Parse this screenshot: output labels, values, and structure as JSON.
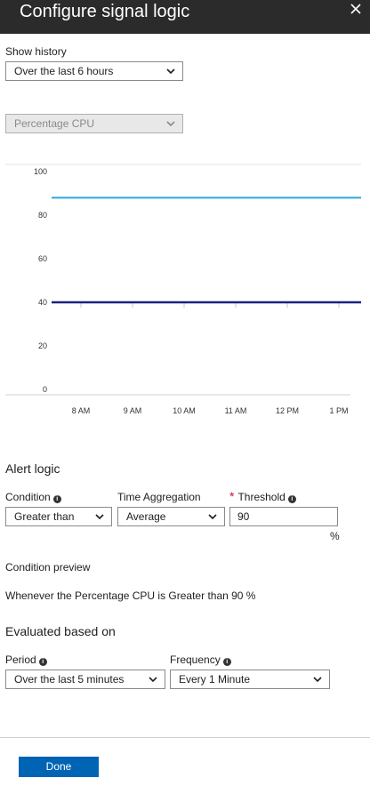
{
  "header": {
    "title": "Configure signal logic"
  },
  "history": {
    "label": "Show history",
    "value": "Over the last 6 hours"
  },
  "metric": {
    "value": "Percentage CPU"
  },
  "chart_data": {
    "type": "line",
    "y_ticks": [
      "100",
      "80",
      "60",
      "40",
      "20",
      "0"
    ],
    "ylim": [
      0,
      100
    ],
    "x_ticks": [
      "8 AM",
      "9 AM",
      "10 AM",
      "11 AM",
      "12 PM",
      "1 PM"
    ],
    "series": [
      {
        "values": [
          88,
          88
        ],
        "color": "#29a8e0"
      },
      {
        "values": [
          40,
          40
        ],
        "color": "#1a237e"
      }
    ],
    "grid": false
  },
  "alert": {
    "title": "Alert logic",
    "condition_label": "Condition",
    "condition_value": "Greater than",
    "aggregation_label": "Time Aggregation",
    "aggregation_value": "Average",
    "required_mark": "*",
    "threshold_label": "Threshold",
    "threshold_value": "90",
    "threshold_unit": "%"
  },
  "preview": {
    "label": "Condition preview",
    "text": "Whenever the Percentage CPU is Greater than 90 %"
  },
  "evaluated": {
    "title": "Evaluated based on",
    "period_label": "Period",
    "period_value": "Over the last 5 minutes",
    "frequency_label": "Frequency",
    "frequency_value": "Every 1 Minute"
  },
  "footer": {
    "done_label": "Done"
  }
}
